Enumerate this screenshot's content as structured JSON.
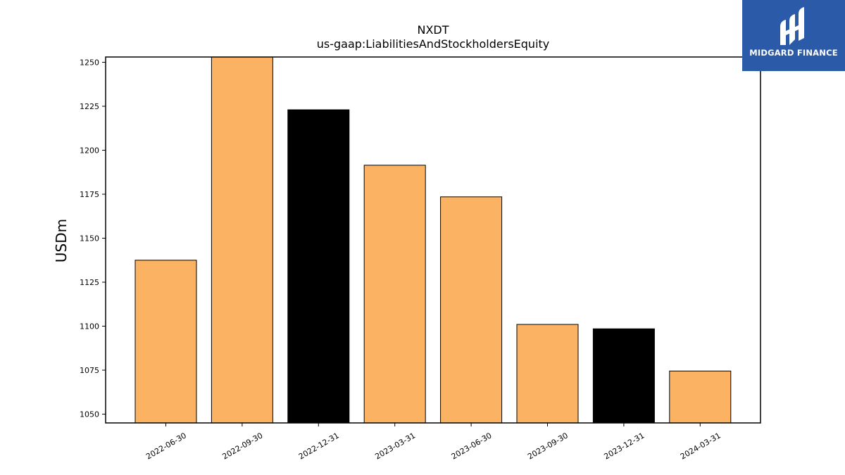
{
  "logo": {
    "text": "MIDGARD FINANCE",
    "icon": "midgard-finance-logo-icon",
    "background": "#2b5aa8"
  },
  "chart_data": {
    "type": "bar",
    "title": "NXDT",
    "subtitle": "us-gaap:LiabilitiesAndStockholdersEquity",
    "xlabel": "",
    "ylabel": "USDm",
    "categories": [
      "2022-06-30",
      "2022-09-30",
      "2022-12-31",
      "2023-03-31",
      "2023-06-30",
      "2023-09-30",
      "2023-12-31",
      "2024-03-31"
    ],
    "values": [
      1137.5,
      1253,
      1223,
      1191.5,
      1173.5,
      1101,
      1098.5,
      1074.5
    ],
    "bar_colors": [
      "#fbb363",
      "#fbb363",
      "#000000",
      "#fbb363",
      "#fbb363",
      "#fbb363",
      "#000000",
      "#fbb363"
    ],
    "ylim": [
      1045,
      1253
    ],
    "yticks": [
      1050,
      1075,
      1100,
      1125,
      1150,
      1175,
      1200,
      1225,
      1250
    ],
    "grid": false,
    "legend": "none"
  }
}
